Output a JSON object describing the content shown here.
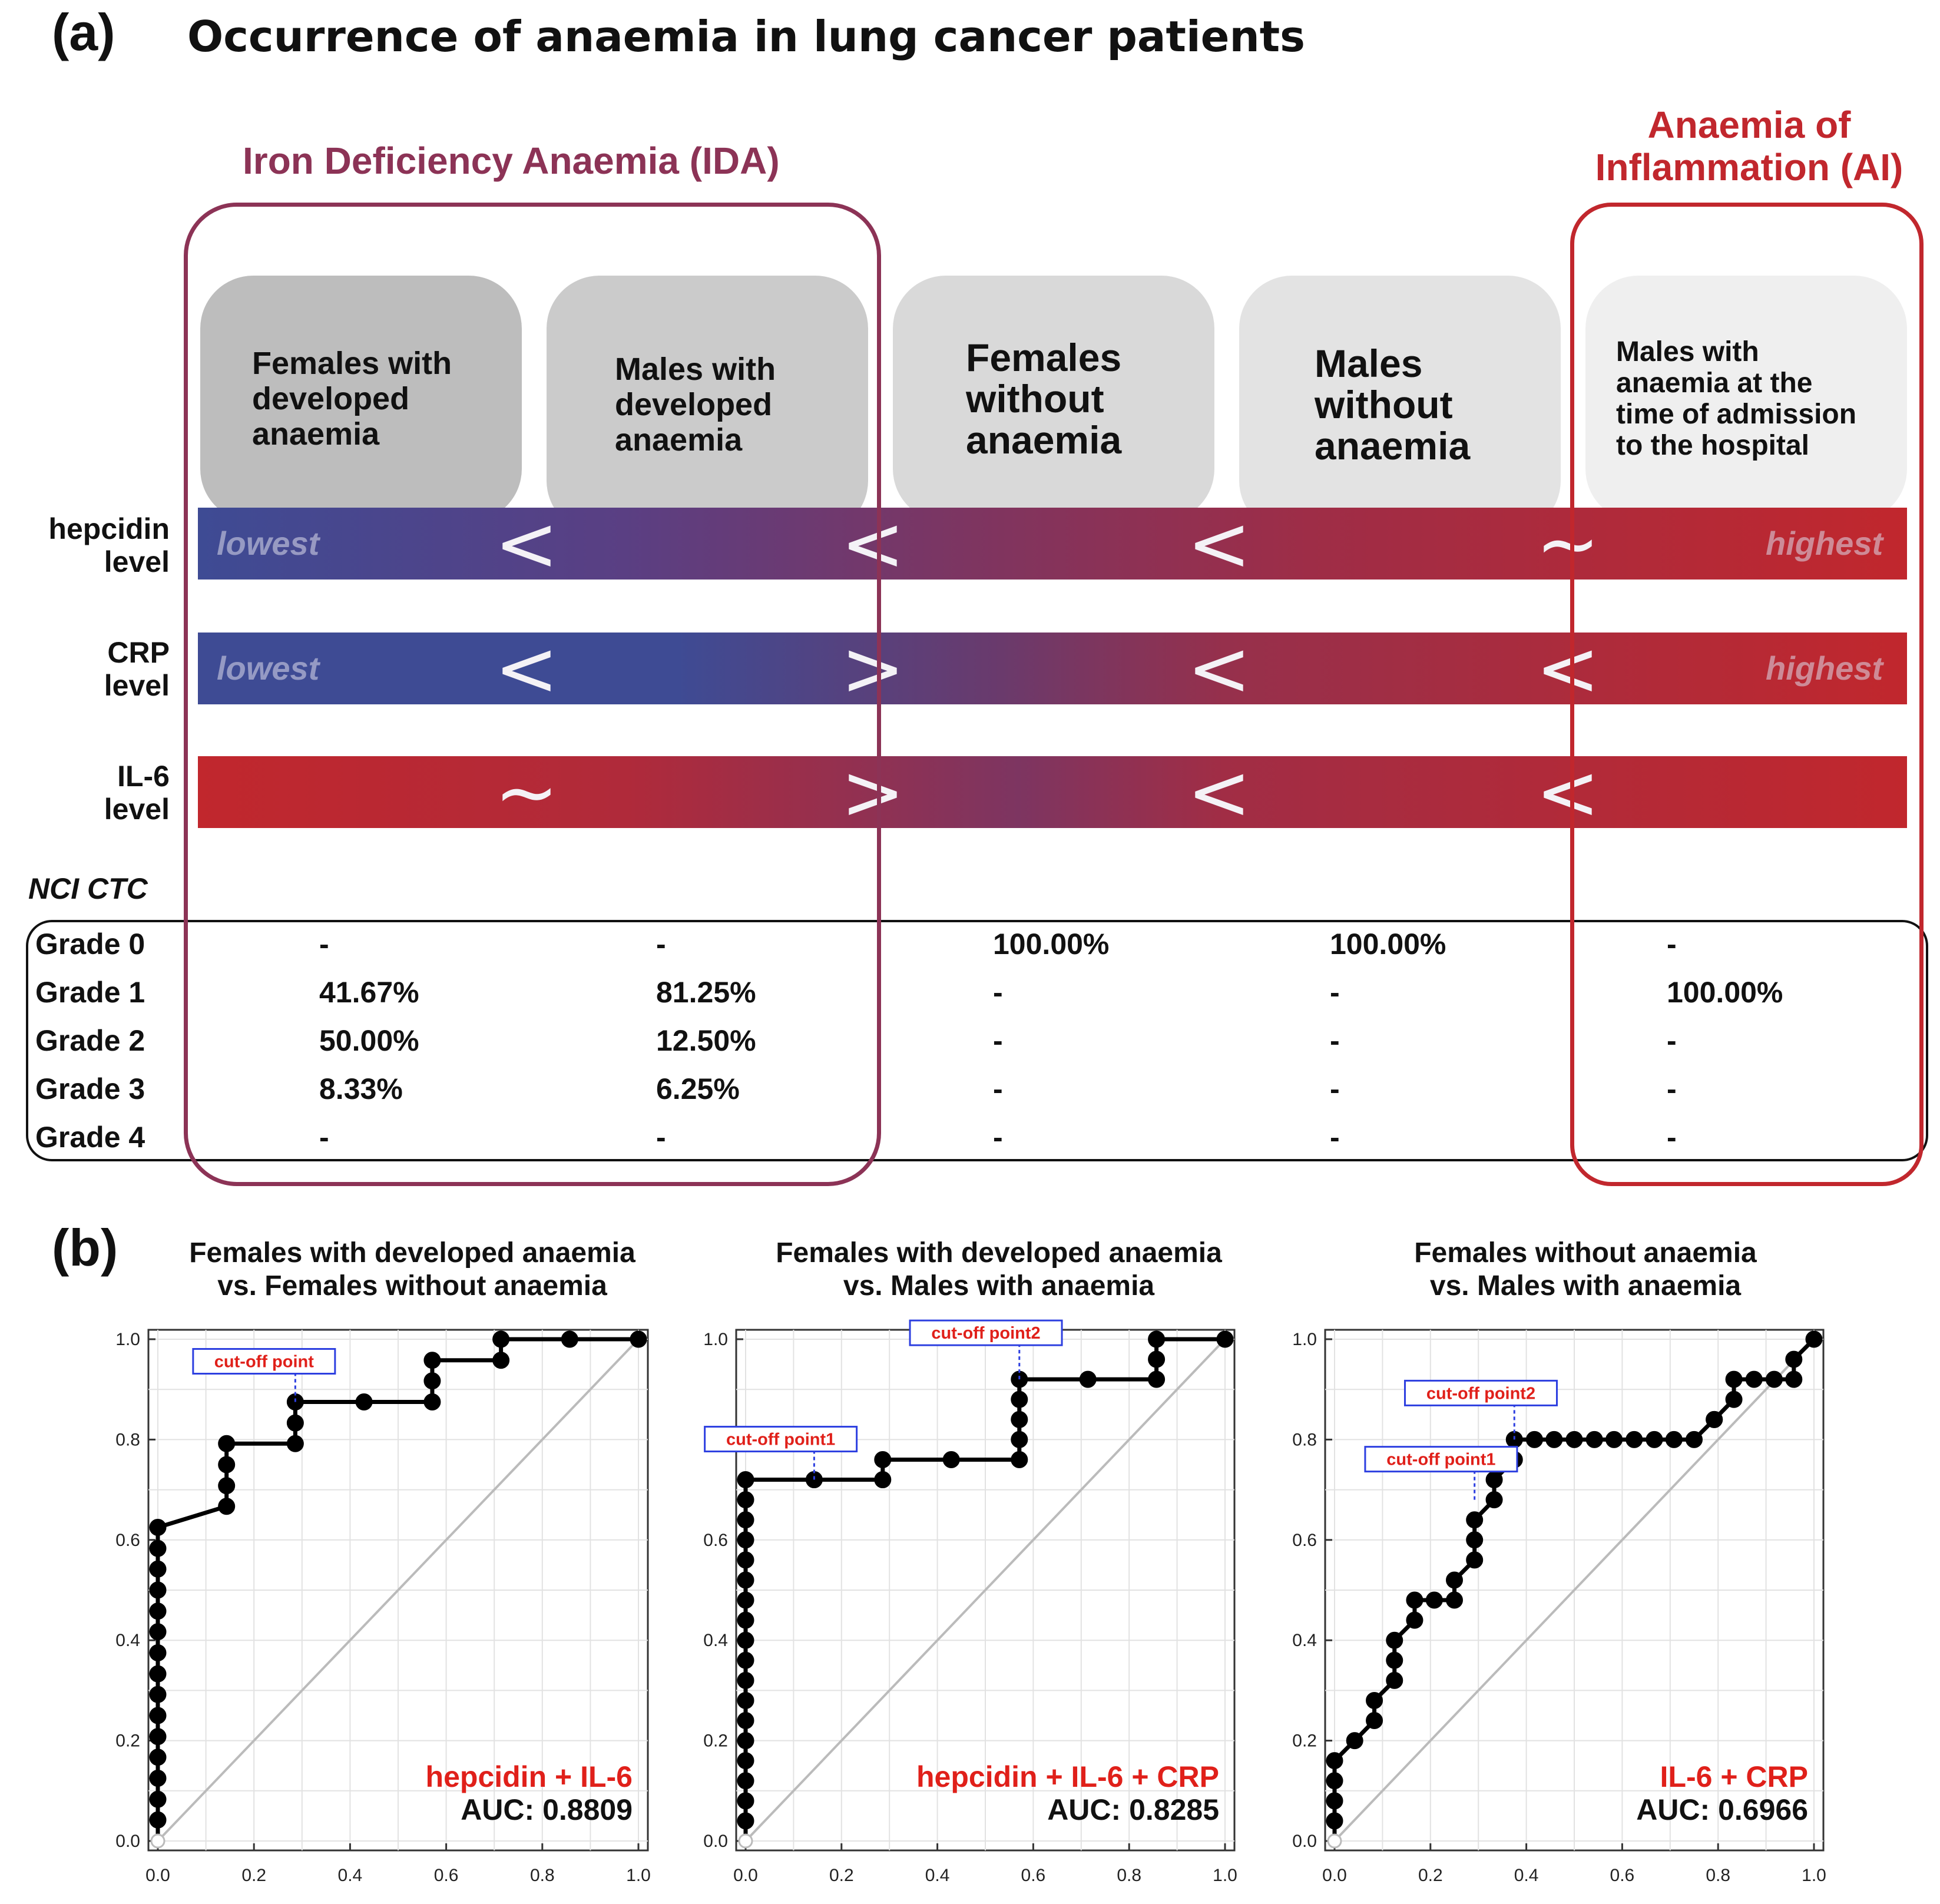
{
  "panel_a": {
    "label": "(a)",
    "title": "Occurrence of anaemia in lung cancer patients",
    "ida_title": "Iron Deficiency Anaemia (IDA)",
    "ai_title_line1": "Anaemia of",
    "ai_title_line2": "Inflammation (AI)",
    "categories": [
      {
        "lines": [
          "Females with",
          "developed",
          "anaemia"
        ]
      },
      {
        "lines": [
          "Males with",
          "developed",
          "anaemia"
        ]
      },
      {
        "lines": [
          "Females",
          "without",
          "anaemia"
        ]
      },
      {
        "lines": [
          "Males",
          "without",
          "anaemia"
        ]
      },
      {
        "lines": [
          "Males with",
          "anaemia at the",
          "time of admission",
          "to the hospital"
        ]
      }
    ],
    "bars": [
      {
        "label_line1": "hepcidin",
        "label_line2": "level",
        "low_word": "lowest",
        "high_word": "highest",
        "symbols": [
          "<",
          "<",
          "<",
          "~"
        ]
      },
      {
        "label_line1": "CRP",
        "label_line2": "level",
        "low_word": "lowest",
        "high_word": "highest",
        "symbols": [
          "<",
          ">",
          "<",
          "<"
        ]
      },
      {
        "label_line1": "IL-6",
        "label_line2": "level",
        "low_word": "",
        "high_word": "",
        "symbols": [
          "~",
          ">",
          "<",
          "<"
        ]
      }
    ],
    "nci_label": "NCI CTC",
    "grades": [
      {
        "label": "Grade 0",
        "values": [
          "-",
          "-",
          "100.00%",
          "100.00%",
          "-"
        ]
      },
      {
        "label": "Grade 1",
        "values": [
          "41.67%",
          "81.25%",
          "-",
          "-",
          "100.00%"
        ]
      },
      {
        "label": "Grade 2",
        "values": [
          "50.00%",
          "12.50%",
          "-",
          "-",
          "-"
        ]
      },
      {
        "label": "Grade 3",
        "values": [
          "8.33%",
          "6.25%",
          "-",
          "-",
          "-"
        ]
      },
      {
        "label": "Grade 4",
        "values": [
          "-",
          "-",
          "-",
          "-",
          "-"
        ]
      }
    ],
    "colors": {
      "ida": "#8c3356",
      "ai": "#c1272d",
      "low": "#3e4b94",
      "high": "#c1272d"
    }
  },
  "panel_b": {
    "label": "(b)"
  },
  "chart_data": [
    {
      "type": "line",
      "title_line1": "Females with developed anaemia",
      "title_line2": "vs. Females without anaemia",
      "xlim": [
        0,
        1
      ],
      "ylim": [
        0,
        1
      ],
      "xticks": [
        "0.0",
        "0.2",
        "0.4",
        "0.6",
        "0.8",
        "1.0"
      ],
      "yticks": [
        "0.0",
        "0.2",
        "0.4",
        "0.6",
        "0.8",
        "1.0"
      ],
      "series": [
        {
          "name": "hepcidin + IL-6",
          "x": [
            0,
            0,
            0,
            0,
            0,
            0,
            0,
            0,
            0,
            0,
            0,
            0,
            0,
            0,
            0,
            0,
            0.143,
            0.143,
            0.143,
            0.143,
            0.286,
            0.286,
            0.286,
            0.429,
            0.571,
            0.571,
            0.571,
            0.714,
            0.714,
            0.857,
            1.0
          ],
          "y": [
            0,
            0.042,
            0.083,
            0.125,
            0.167,
            0.208,
            0.25,
            0.292,
            0.333,
            0.375,
            0.417,
            0.458,
            0.5,
            0.542,
            0.583,
            0.625,
            0.667,
            0.708,
            0.75,
            0.792,
            0.792,
            0.833,
            0.875,
            0.875,
            0.875,
            0.917,
            0.958,
            0.958,
            1.0,
            1.0,
            1.0
          ]
        }
      ],
      "method_label": "hepcidin + IL-6",
      "auc_label": "AUC: 0.8809",
      "annotations": [
        {
          "text": "cut-off point",
          "x": 0.286,
          "y": 0.875
        }
      ]
    },
    {
      "type": "line",
      "title_line1": "Females with developed anaemia",
      "title_line2": "vs. Males with anaemia",
      "xlim": [
        0,
        1
      ],
      "ylim": [
        0,
        1
      ],
      "xticks": [
        "0.0",
        "0.2",
        "0.4",
        "0.6",
        "0.8",
        "1.0"
      ],
      "yticks": [
        "0.0",
        "0.2",
        "0.4",
        "0.6",
        "0.8",
        "1.0"
      ],
      "series": [
        {
          "name": "hepcidin + IL-6 + CRP",
          "x": [
            0,
            0,
            0,
            0,
            0,
            0,
            0,
            0,
            0,
            0,
            0,
            0,
            0,
            0,
            0,
            0,
            0,
            0,
            0,
            0.143,
            0.286,
            0.286,
            0.429,
            0.571,
            0.571,
            0.571,
            0.571,
            0.571,
            0.714,
            0.857,
            0.857,
            0.857,
            1.0
          ],
          "y": [
            0,
            0.04,
            0.08,
            0.12,
            0.16,
            0.2,
            0.24,
            0.28,
            0.32,
            0.36,
            0.4,
            0.44,
            0.48,
            0.52,
            0.56,
            0.6,
            0.64,
            0.68,
            0.72,
            0.72,
            0.72,
            0.76,
            0.76,
            0.76,
            0.8,
            0.84,
            0.88,
            0.92,
            0.92,
            0.92,
            0.96,
            1.0,
            1.0
          ]
        }
      ],
      "method_label": "hepcidin + IL-6 + CRP",
      "auc_label": "AUC: 0.8285",
      "annotations": [
        {
          "text": "cut-off point1",
          "x": 0.143,
          "y": 0.72
        },
        {
          "text": "cut-off point2",
          "x": 0.571,
          "y": 0.92
        }
      ]
    },
    {
      "type": "line",
      "title_line1": "Females without anaemia",
      "title_line2": "vs. Males with anaemia",
      "xlim": [
        0,
        1
      ],
      "ylim": [
        0,
        1
      ],
      "xticks": [
        "0.0",
        "0.2",
        "0.4",
        "0.6",
        "0.8",
        "1.0"
      ],
      "yticks": [
        "0.0",
        "0.2",
        "0.4",
        "0.6",
        "0.8",
        "1.0"
      ],
      "series": [
        {
          "name": "IL-6 + CRP",
          "x": [
            0,
            0,
            0,
            0,
            0,
            0.042,
            0.083,
            0.083,
            0.125,
            0.125,
            0.125,
            0.167,
            0.167,
            0.208,
            0.25,
            0.25,
            0.292,
            0.292,
            0.292,
            0.333,
            0.333,
            0.375,
            0.375,
            0.417,
            0.458,
            0.5,
            0.542,
            0.583,
            0.625,
            0.667,
            0.708,
            0.75,
            0.792,
            0.792,
            0.833,
            0.833,
            0.875,
            0.917,
            0.958,
            0.958,
            1.0
          ],
          "y": [
            0,
            0.04,
            0.08,
            0.12,
            0.16,
            0.2,
            0.24,
            0.28,
            0.32,
            0.36,
            0.4,
            0.44,
            0.48,
            0.48,
            0.48,
            0.52,
            0.56,
            0.6,
            0.64,
            0.68,
            0.72,
            0.76,
            0.8,
            0.8,
            0.8,
            0.8,
            0.8,
            0.8,
            0.8,
            0.8,
            0.8,
            0.8,
            0.84,
            0.84,
            0.88,
            0.92,
            0.92,
            0.92,
            0.92,
            0.96,
            1.0
          ]
        }
      ],
      "method_label": "IL-6 + CRP",
      "auc_label": "AUC: 0.6966",
      "annotations": [
        {
          "text": "cut-off point1",
          "x": 0.292,
          "y": 0.68
        },
        {
          "text": "cut-off point2",
          "x": 0.375,
          "y": 0.8
        }
      ]
    }
  ]
}
